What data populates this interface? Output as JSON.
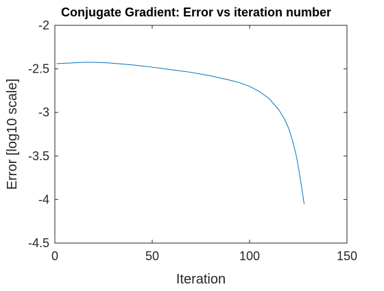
{
  "chart_data": {
    "type": "line",
    "title": "Conjugate Gradient: Error vs iteration number",
    "xlabel": "Iteration",
    "ylabel": "Error [log10 scale]",
    "xlim": [
      0,
      150
    ],
    "ylim": [
      -4.5,
      -2
    ],
    "xticks": [
      0,
      50,
      100,
      150
    ],
    "xtick_labels": [
      "0",
      "50",
      "100",
      "150"
    ],
    "yticks": [
      -2,
      -2.5,
      -3,
      -3.5,
      -4,
      -4.5
    ],
    "ytick_labels": [
      "-2",
      "-2.5",
      "-3",
      "-3.5",
      "-4",
      "-4.5"
    ],
    "grid": false,
    "box": true,
    "series": [
      {
        "color": "#0072BD",
        "x": [
          1,
          5,
          10,
          15,
          20,
          25,
          30,
          35,
          40,
          45,
          50,
          55,
          60,
          65,
          70,
          75,
          80,
          85,
          90,
          95,
          100,
          105,
          110,
          115,
          118,
          120,
          122,
          124,
          125,
          126,
          127,
          128
        ],
        "y": [
          -2.44,
          -2.435,
          -2.43,
          -2.425,
          -2.425,
          -2.428,
          -2.435,
          -2.445,
          -2.455,
          -2.467,
          -2.48,
          -2.495,
          -2.51,
          -2.525,
          -2.54,
          -2.56,
          -2.58,
          -2.605,
          -2.63,
          -2.66,
          -2.7,
          -2.76,
          -2.84,
          -2.97,
          -3.08,
          -3.18,
          -3.32,
          -3.5,
          -3.62,
          -3.76,
          -3.9,
          -4.05
        ]
      }
    ]
  }
}
